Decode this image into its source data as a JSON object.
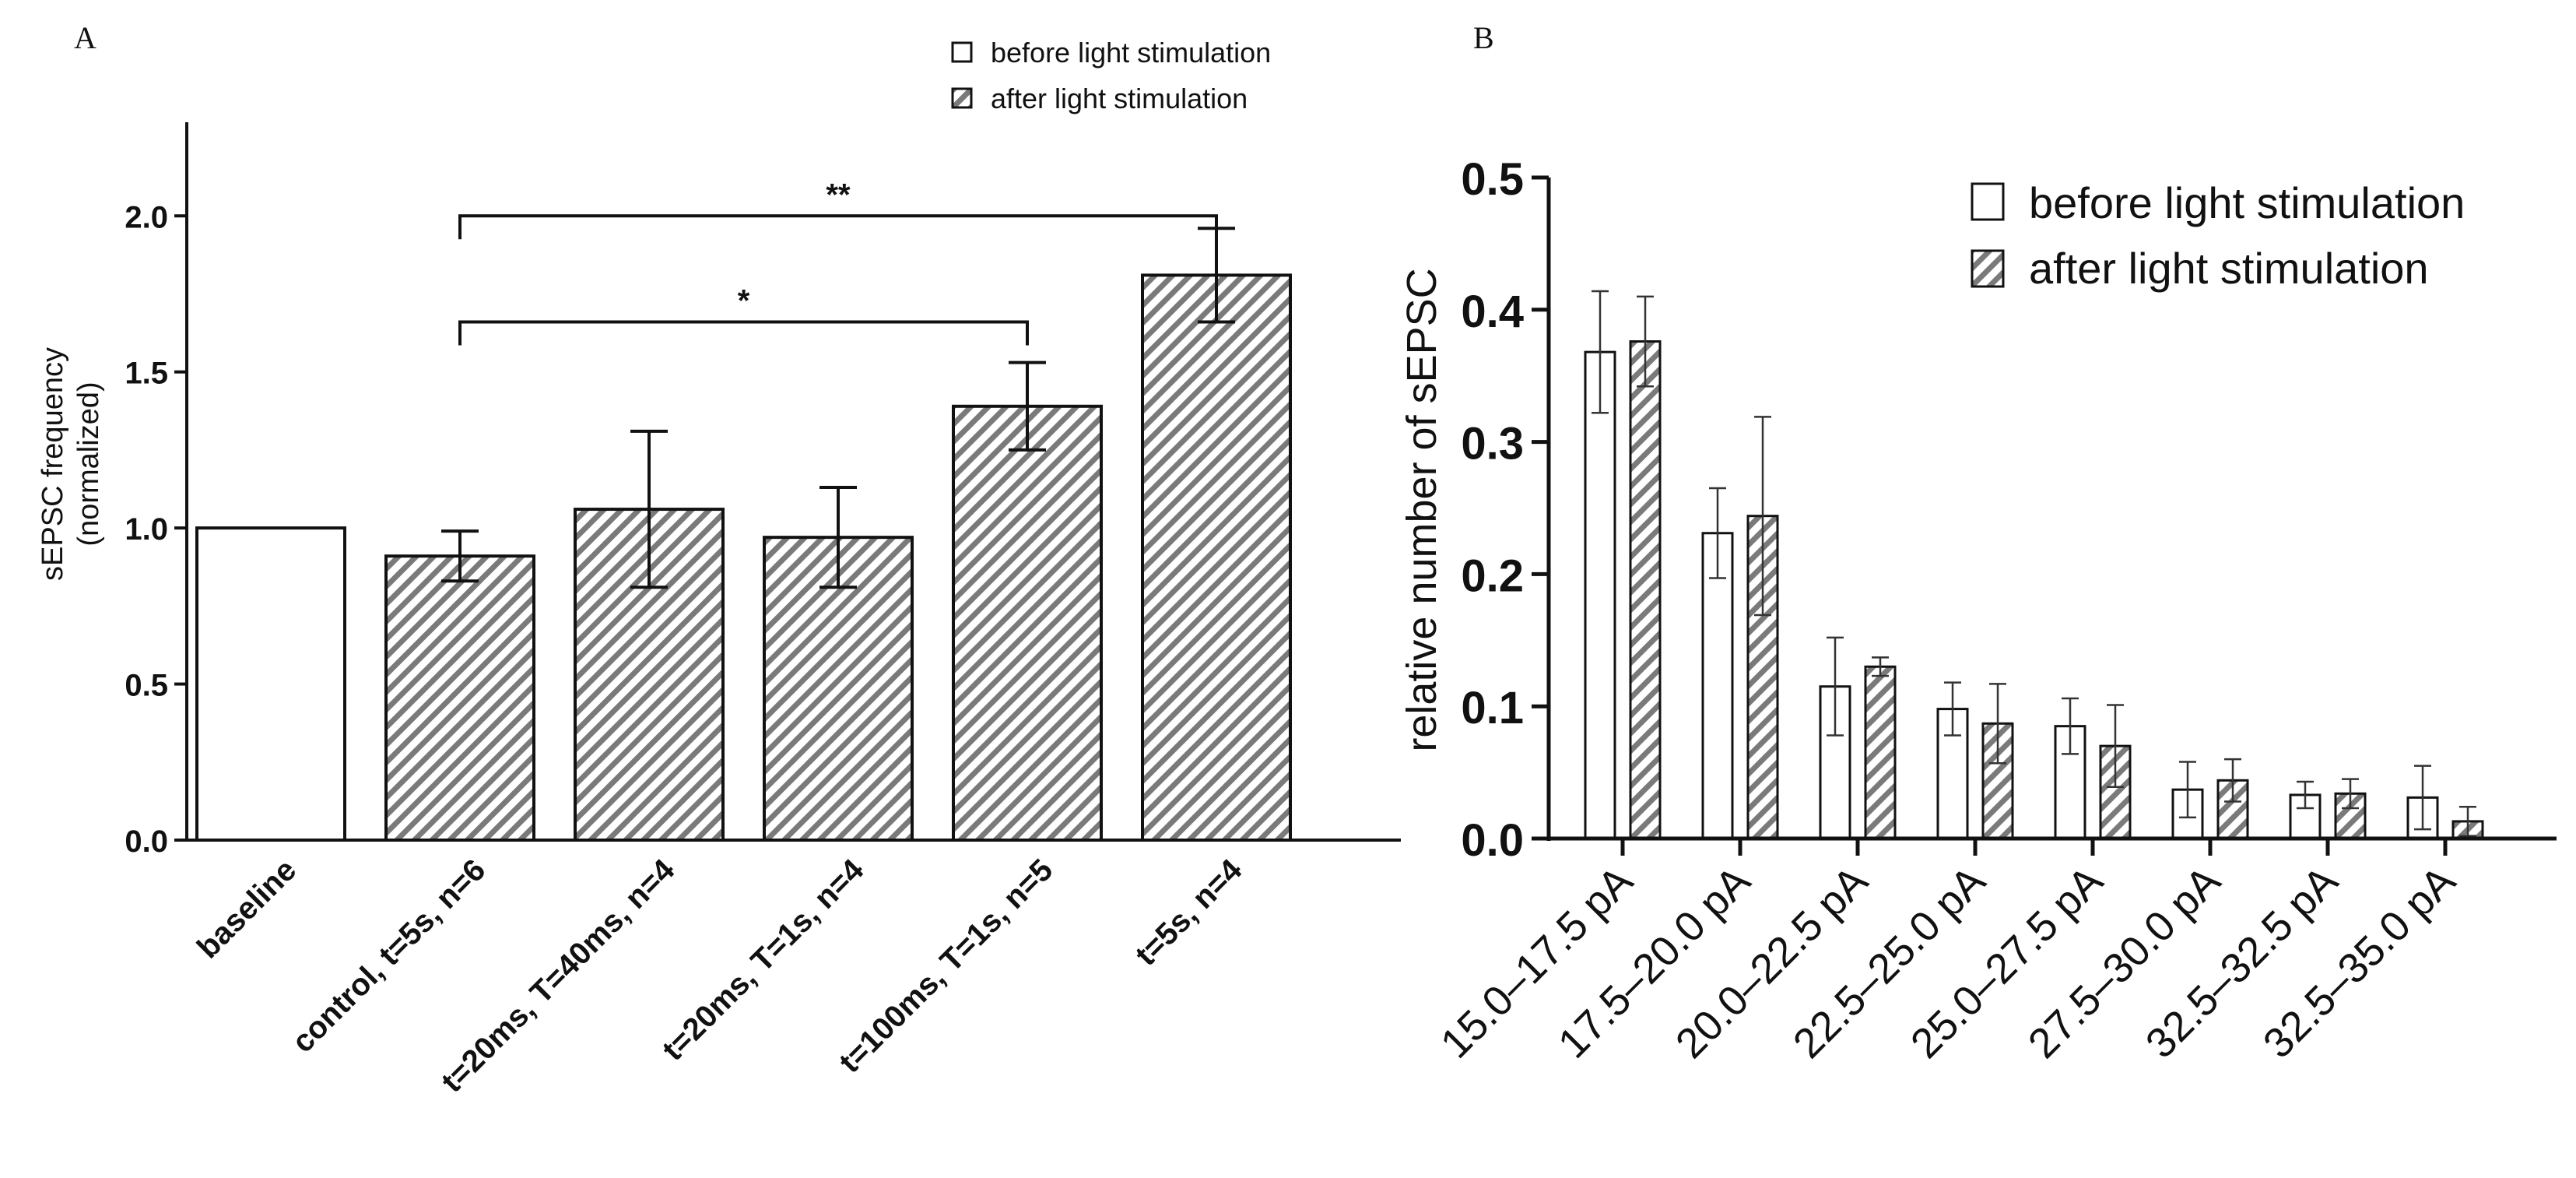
{
  "chart_data": [
    {
      "panel_label": "A",
      "type": "bar",
      "ylabel_line1": "sEPSC frequency",
      "ylabel_line2": "(normalized)",
      "ylim": [
        0,
        2.3
      ],
      "yticks": [
        "0.0",
        "0.5",
        "1.0",
        "1.5",
        "2.0"
      ],
      "yticks_values": [
        0,
        0.5,
        1.0,
        1.5,
        2.0
      ],
      "legend": [
        {
          "label": "before light stimulation",
          "pattern": "open"
        },
        {
          "label": "after light stimulation",
          "pattern": "hatched"
        }
      ],
      "categories": [
        "baseline",
        "control, t=5s, n=6",
        "t=20ms, T=40ms, n=4",
        "t=20ms, T=1s, n=4",
        "t=100ms, T=1s, n=5",
        "t=5s, n=4"
      ],
      "values": [
        1.0,
        0.91,
        1.06,
        0.97,
        1.39,
        1.81
      ],
      "errors": [
        0,
        0.08,
        0.25,
        0.16,
        0.14,
        0.15
      ],
      "patterns": [
        "open",
        "hatched",
        "hatched",
        "hatched",
        "hatched",
        "hatched"
      ],
      "significance": [
        {
          "from": 1,
          "to": 5,
          "y": 2.0,
          "label": "**"
        },
        {
          "from": 1,
          "to": 4,
          "y": 1.66,
          "label": "*"
        }
      ]
    },
    {
      "panel_label": "B",
      "type": "bar",
      "ylabel": "relative number of sEPSC",
      "ylim": [
        0,
        0.5
      ],
      "yticks": [
        "0.0",
        "0.1",
        "0.2",
        "0.3",
        "0.4",
        "0.5"
      ],
      "yticks_values": [
        0,
        0.1,
        0.2,
        0.3,
        0.4,
        0.5
      ],
      "legend": [
        {
          "label": "before light stimulation",
          "pattern": "open"
        },
        {
          "label": "after light stimulation",
          "pattern": "hatched"
        }
      ],
      "categories": [
        "15.0–17.5 pA",
        "17.5–20.0 pA",
        "20.0–22.5 pA",
        "22.5–25.0 pA",
        "25.0–27.5 pA",
        "27.5–30.0 pA",
        "32.5–32.5 pA",
        "32.5–35.0 pA"
      ],
      "series": [
        {
          "name": "before light stimulation",
          "pattern": "open",
          "values": [
            0.368,
            0.231,
            0.115,
            0.098,
            0.085,
            0.037,
            0.033,
            0.031
          ],
          "errors": [
            0.046,
            0.034,
            0.037,
            0.02,
            0.021,
            0.021,
            0.01,
            0.024
          ]
        },
        {
          "name": "after light stimulation",
          "pattern": "hatched",
          "values": [
            0.376,
            0.244,
            0.13,
            0.087,
            0.07,
            0.044,
            0.034,
            0.013
          ],
          "errors": [
            0.034,
            0.075,
            0.007,
            0.03,
            0.031,
            0.016,
            0.011,
            0.011
          ]
        }
      ]
    }
  ]
}
